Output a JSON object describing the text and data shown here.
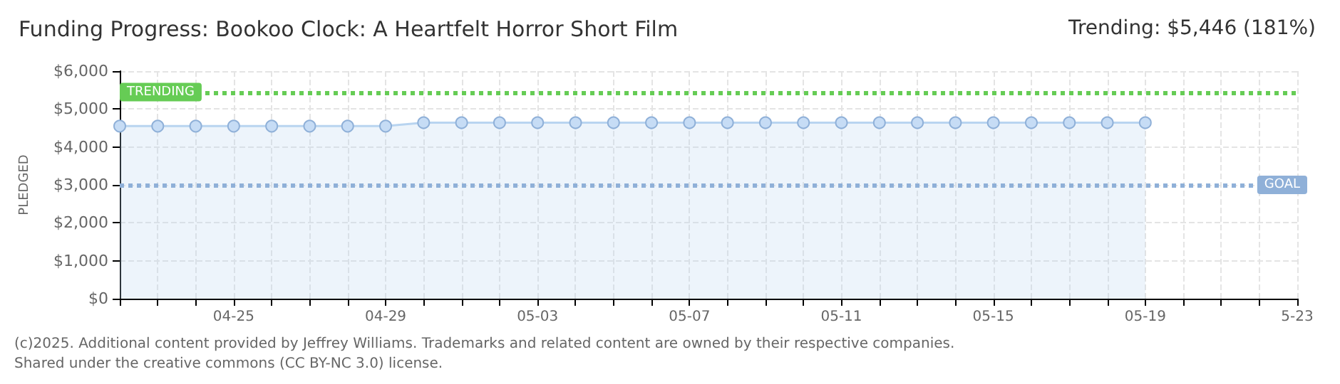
{
  "chart_data": {
    "type": "area",
    "title": "Funding Progress: Bookoo Clock: A Heartfelt Horror Short Film",
    "subtitle": "Trending: $5,446 (181%)",
    "ylabel": "PLEDGED",
    "x": [
      "2025-04-22",
      "2025-04-23",
      "2025-04-24",
      "2025-04-25",
      "2025-04-26",
      "2025-04-27",
      "2025-04-28",
      "2025-04-29",
      "2025-04-30",
      "2025-05-01",
      "2025-05-02",
      "2025-05-03",
      "2025-05-04",
      "2025-05-05",
      "2025-05-06",
      "2025-05-07",
      "2025-05-08",
      "2025-05-09",
      "2025-05-10",
      "2025-05-11",
      "2025-05-12",
      "2025-05-13",
      "2025-05-14",
      "2025-05-15",
      "2025-05-16",
      "2025-05-17",
      "2025-05-18",
      "2025-05-19"
    ],
    "series": [
      {
        "color": "#b8d4f0",
        "values": [
          4550,
          4550,
          4550,
          4550,
          4550,
          4550,
          4550,
          4550,
          4640,
          4640,
          4640,
          4640,
          4640,
          4640,
          4640,
          4640,
          4640,
          4640,
          4640,
          4640,
          4640,
          4640,
          4640,
          4640,
          4640,
          4640,
          4640,
          4640
        ]
      }
    ],
    "xlim": [
      "2025-04-22",
      "2025-05-23"
    ],
    "xticks": [
      {
        "value": "2025-04-22",
        "label": null
      },
      {
        "value": "2025-04-23",
        "label": null
      },
      {
        "value": "2025-04-24",
        "label": null
      },
      {
        "value": "2025-04-25",
        "label": "04-25"
      },
      {
        "value": "2025-04-26",
        "label": null
      },
      {
        "value": "2025-04-27",
        "label": null
      },
      {
        "value": "2025-04-28",
        "label": null
      },
      {
        "value": "2025-04-29",
        "label": "04-29"
      },
      {
        "value": "2025-04-30",
        "label": null
      },
      {
        "value": "2025-05-01",
        "label": null
      },
      {
        "value": "2025-05-02",
        "label": null
      },
      {
        "value": "2025-05-03",
        "label": "05-03"
      },
      {
        "value": "2025-05-04",
        "label": null
      },
      {
        "value": "2025-05-05",
        "label": null
      },
      {
        "value": "2025-05-06",
        "label": null
      },
      {
        "value": "2025-05-07",
        "label": "05-07"
      },
      {
        "value": "2025-05-08",
        "label": null
      },
      {
        "value": "2025-05-09",
        "label": null
      },
      {
        "value": "2025-05-10",
        "label": null
      },
      {
        "value": "2025-05-11",
        "label": "05-11"
      },
      {
        "value": "2025-05-12",
        "label": null
      },
      {
        "value": "2025-05-13",
        "label": null
      },
      {
        "value": "2025-05-14",
        "label": null
      },
      {
        "value": "2025-05-15",
        "label": "05-15"
      },
      {
        "value": "2025-05-16",
        "label": null
      },
      {
        "value": "2025-05-17",
        "label": null
      },
      {
        "value": "2025-05-18",
        "label": null
      },
      {
        "value": "2025-05-19",
        "label": "05-19"
      },
      {
        "value": "2025-05-20",
        "label": null
      },
      {
        "value": "2025-05-21",
        "label": null
      },
      {
        "value": "2025-05-22",
        "label": null
      },
      {
        "value": "2025-05-23",
        "label": "5-23"
      }
    ],
    "ylim": [
      0,
      6000
    ],
    "yticks": [
      {
        "value": 0,
        "label": "$0"
      },
      {
        "value": 1000,
        "label": "$1,000"
      },
      {
        "value": 2000,
        "label": "$2,000"
      },
      {
        "value": 3000,
        "label": "$3,000"
      },
      {
        "value": 4000,
        "label": "$4,000"
      },
      {
        "value": 5000,
        "label": "$5,000"
      },
      {
        "value": 6000,
        "label": "$6,000"
      }
    ],
    "ref_lines": [
      {
        "axis": "y",
        "value": 5446,
        "label": "TRENDING",
        "color": "#66cc55",
        "line_style": "dotted"
      },
      {
        "axis": "y",
        "value": 3000,
        "label": "GOAL",
        "color": "#8fb0d8",
        "line_style": "dotted"
      }
    ],
    "grid": true,
    "marker": "circle",
    "line_style": "solid",
    "annotations": [
      "(c)2025. Additional content provided by Jeffrey Williams. Trademarks and related content are owned by their respective companies.",
      "Shared under the creative commons (CC BY-NC 3.0) license."
    ]
  }
}
